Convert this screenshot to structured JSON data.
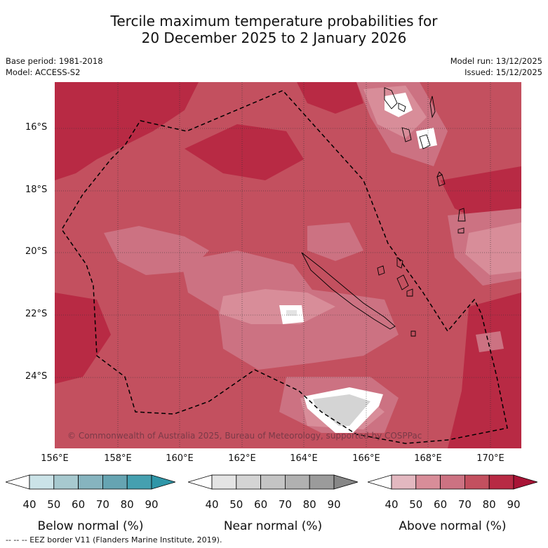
{
  "title": {
    "line1": "Tercile maximum temperature probabilities for",
    "line2": "20 December 2025 to 2 January 2026"
  },
  "meta": {
    "base_period": "Base period: 1981-2018",
    "model": "Model: ACCESS-S2",
    "model_run": "Model run: 13/12/2025",
    "issued": "Issued: 15/12/2025"
  },
  "map": {
    "copyright": "© Commonwealth of Australia 2025, Bureau of Meteorology, supported by COSPPac",
    "lat_labels": [
      "16°S",
      "18°S",
      "20°S",
      "22°S",
      "24°S"
    ],
    "lon_labels": [
      "156°E",
      "158°E",
      "160°E",
      "162°E",
      "164°E",
      "166°E",
      "168°E",
      "170°E"
    ]
  },
  "legends": [
    {
      "title": "Below normal (%)",
      "ticks": [
        "40",
        "50",
        "60",
        "70",
        "80",
        "90"
      ],
      "colors": [
        "#ffffff",
        "#cbe3e8",
        "#a7c9cf",
        "#86b4bf",
        "#66a4b2",
        "#45a0b0",
        "#2f96a8"
      ]
    },
    {
      "title": "Near normal (%)",
      "ticks": [
        "40",
        "50",
        "60",
        "70",
        "80",
        "90"
      ],
      "colors": [
        "#ffffff",
        "#e4e4e4",
        "#d4d4d4",
        "#c4c4c4",
        "#b1b1b1",
        "#9b9b9b",
        "#878787"
      ]
    },
    {
      "title": "Above normal (%)",
      "ticks": [
        "40",
        "50",
        "60",
        "70",
        "80",
        "90"
      ],
      "colors": [
        "#ffffff",
        "#e3b8c0",
        "#d88d99",
        "#cc7282",
        "#c3505f",
        "#b82a44",
        "#a81436"
      ]
    }
  ],
  "footer": "--  --  -- EEZ border V11 (Flanders Marine Institute, 2019)."
}
